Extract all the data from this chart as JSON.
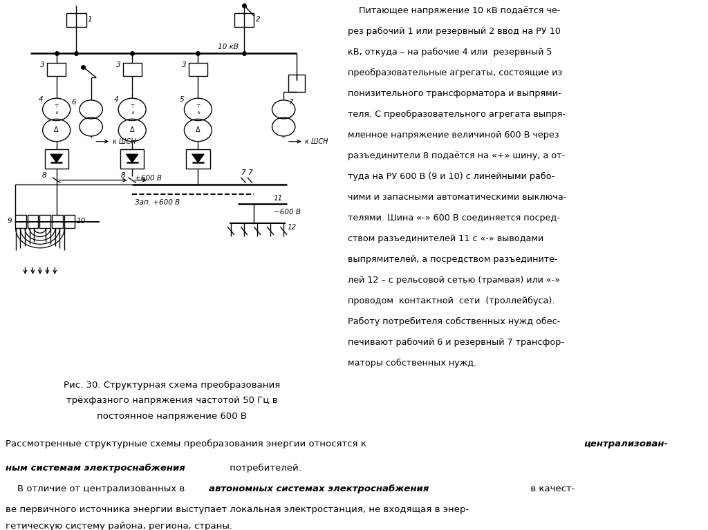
{
  "bg_color": "#ffffff",
  "caption_bg": "#c5d8e8",
  "bottom_bg": "#c5d8e8",
  "right_text_lines": [
    "    Питающее напряжение 10 кВ подаётся че-",
    "рез рабочий 1 или резервный 2 ввод на РУ 10",
    "кВ, откуда – на рабочие 4 или  резервный 5",
    "преобразовательные агрегаты, состоящие из",
    "понизительного трансформатора и выпрями-",
    "теля. С преобразовательного агрегата выпря-",
    "мленное напряжение величиной 600 В через",
    "разъединители 8 подаётся на «+» шину, а от-",
    "туда на РУ 600 В (9 и 10) с линейными рабо-",
    "чими и запасными автоматическими выключа-",
    "телями. Шина «-» 600 В соединяется посред-",
    "ством разъединителей 11 с «-» выводами",
    "выпрямителей, а посредством разъедините-",
    "лей 12 – с рельсовой сетью (трамвая) или «-»",
    "проводом  контактной  сети  (троллейбуса).",
    "Работу потребителя собственных нужд обес-",
    "печивают рабочий 6 и резервный 7 трансфор-",
    "маторы собственных нужд."
  ],
  "caption_line1": "Рис. 30. Структурная схема преобразования",
  "caption_line2": "трёхфазного напряжения частотой 50 Гц в",
  "caption_line3": "постоянное напряжение 600 В"
}
